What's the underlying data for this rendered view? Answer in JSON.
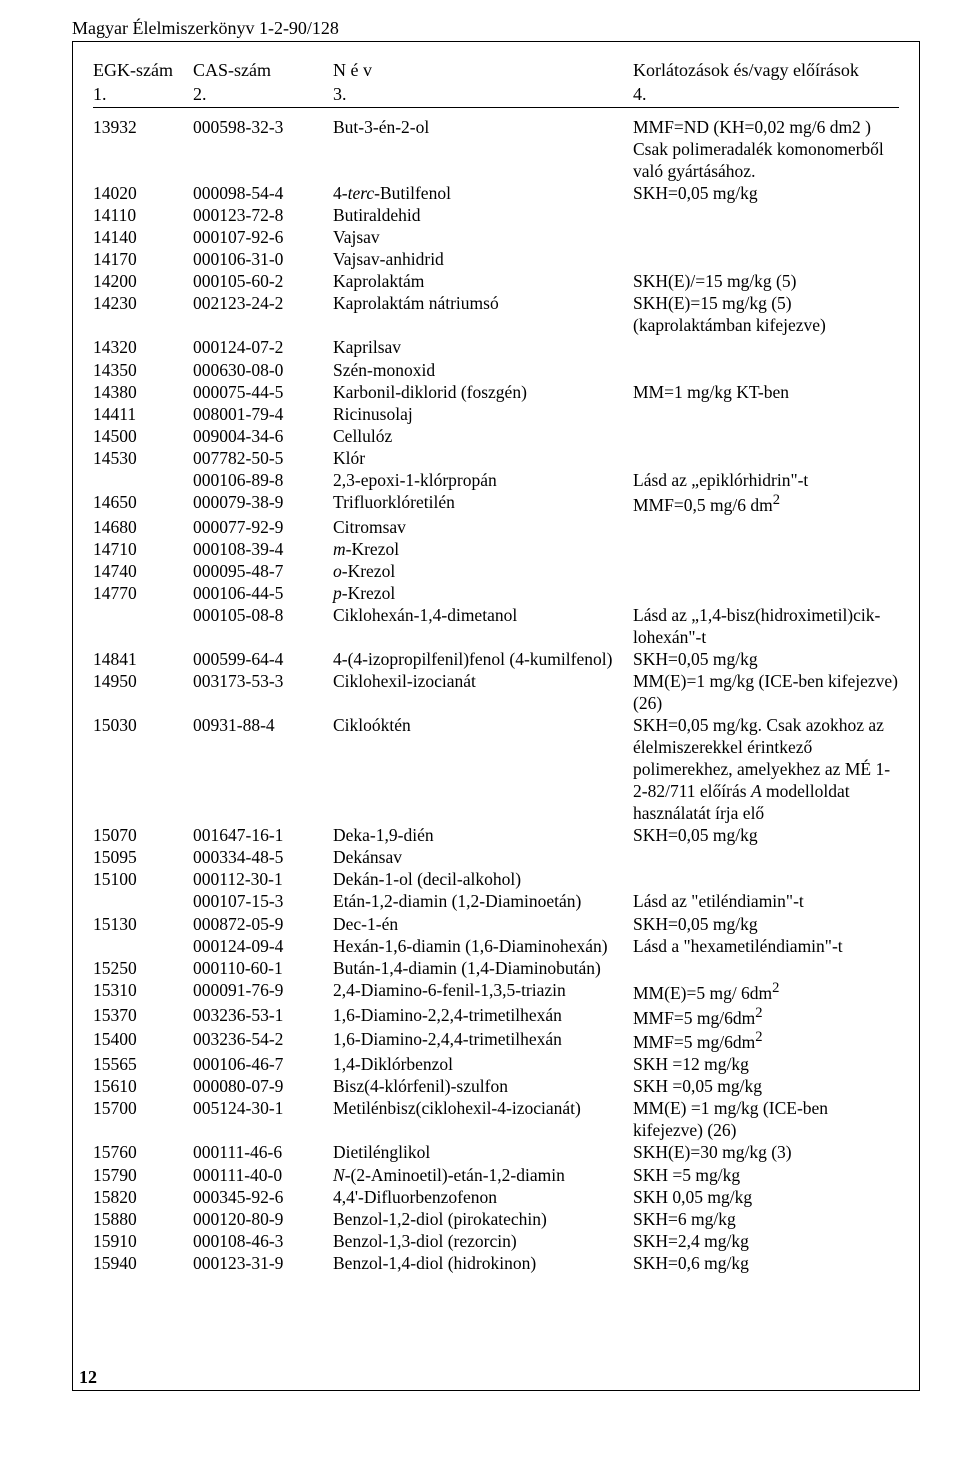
{
  "runhead": "Magyar Élelmiszerkönyv 1-2-90/128",
  "header": {
    "c1": "EGK-szám",
    "c2": "CAS-szám",
    "c3": "N é v",
    "c4": "Korlátozások és/vagy előírások"
  },
  "subheader": {
    "c1": "1.",
    "c2": "2.",
    "c3": "3.",
    "c4": "4."
  },
  "rows": [
    {
      "c1": "13932",
      "c2": "000598-32-3",
      "c3": "But-3-én-2-ol",
      "c4": "MMF=ND (KH=0,02 mg/6 dm2 )"
    },
    {
      "c1": "",
      "c2": "",
      "c3": "",
      "c4": "Csak polimeradalék komonomerből való gyártásához."
    },
    {
      "c1": "14020",
      "c2": "000098-54-4",
      "c3h": "4-<span class=\"i\">terc</span>-Butilfenol",
      "c4": "SKH=0,05 mg/kg"
    },
    {
      "c1": "14110",
      "c2": "000123-72-8",
      "c3": "Butiraldehid",
      "c4": ""
    },
    {
      "c1": "14140",
      "c2": "000107-92-6",
      "c3": "Vajsav",
      "c4": ""
    },
    {
      "c1": "14170",
      "c2": "000106-31-0",
      "c3": "Vajsav-anhidrid",
      "c4": ""
    },
    {
      "c1": "14200",
      "c2": "000105-60-2",
      "c3": "Kaprolaktám",
      "c4": "SKH(E)/=15 mg/kg (5)"
    },
    {
      "c1": "14230",
      "c2": "002123-24-2",
      "c3": "Kaprolaktám nátriumsó",
      "c4": "SKH(E)=15 mg/kg (5) (kaprolaktámban kifejezve)"
    },
    {
      "c1": "14320",
      "c2": "000124-07-2",
      "c3": "Kaprilsav",
      "c4": ""
    },
    {
      "c1": "14350",
      "c2": "000630-08-0",
      "c3": "Szén-monoxid",
      "c4": ""
    },
    {
      "c1": "14380",
      "c2": "000075-44-5",
      "c3": "Karbonil-diklorid (foszgén)",
      "c4": "MM=1 mg/kg KT-ben"
    },
    {
      "c1": "14411",
      "c2": "008001-79-4",
      "c3": "Ricinusolaj",
      "c4": ""
    },
    {
      "c1": "14500",
      "c2": "009004-34-6",
      "c3": "Cellulóz",
      "c4": ""
    },
    {
      "c1": "14530",
      "c2": "007782-50-5",
      "c3": "Klór",
      "c4": ""
    },
    {
      "c1": "",
      "c2": "000106-89-8",
      "c3": "2,3-epoxi-1-klórpropán",
      "c4": "Lásd az „epiklórhidrin\"-t"
    },
    {
      "c1": "14650",
      "c2": "000079-38-9",
      "c3": "Trifluorklóretilén",
      "c4h": "MMF=0,5 mg/6 dm<sup>2</sup>"
    },
    {
      "c1": "14680",
      "c2": "000077-92-9",
      "c3": "Citromsav",
      "c4": ""
    },
    {
      "c1": "14710",
      "c2": "000108-39-4",
      "c3h": "<span class=\"i\">m</span>-Krezol",
      "c4": ""
    },
    {
      "c1": "14740",
      "c2": "000095-48-7",
      "c3h": "<span class=\"i\">o</span>-Krezol",
      "c4": ""
    },
    {
      "c1": "14770",
      "c2": "000106-44-5",
      "c3h": "<span class=\"i\">p</span>-Krezol",
      "c4": ""
    },
    {
      "c1": "",
      "c2": "000105-08-8",
      "c3": "Ciklohexán-1,4-dimetanol",
      "c4": "Lásd az „1,4-bisz(hidroximetil)cik-lohexán\"-t"
    },
    {
      "c1": "14841",
      "c2": "000599-64-4",
      "c3": "4-(4-izopropilfenil)fenol (4-kumilfenol)",
      "c4": "SKH=0,05 mg/kg"
    },
    {
      "c1": "14950",
      "c2": "003173-53-3",
      "c3": "Ciklohexil-izocianát",
      "c4": "MM(E)=1 mg/kg  (ICE-ben kifejezve) (26)"
    },
    {
      "c1": "15030",
      "c2": "00931-88-4",
      "c3": "Cikloóktén",
      "c4h": "SKH=0,05 mg/kg. Csak azokhoz az élelmiszerekkel érintkező polimerekhez, amelyekhez az MÉ 1-2-82/711 előírás <span class=\"i\">A</span> modelloldat használatát írja elő"
    },
    {
      "c1": "15070",
      "c2": "001647-16-1",
      "c3": "Deka-1,9-dién",
      "c4": "SKH=0,05 mg/kg"
    },
    {
      "c1": "15095",
      "c2": "000334-48-5",
      "c3": "Dekánsav",
      "c4": ""
    },
    {
      "c1": "15100",
      "c2": "000112-30-1",
      "c3": "Dekán-1-ol (decil-alkohol)",
      "c4": ""
    },
    {
      "c1": "",
      "c2": "000107-15-3",
      "c3": "Etán-1,2-diamin (1,2-Diaminoetán)",
      "c4": "Lásd az \"etiléndiamin\"-t"
    },
    {
      "c1": "15130",
      "c2": "000872-05-9",
      "c3": "Dec-1-én",
      "c4": "SKH=0,05 mg/kg"
    },
    {
      "c1": "",
      "c2": "000124-09-4",
      "c3": "Hexán-1,6-diamin (1,6-Diaminohexán)",
      "c4": "Lásd a \"hexametiléndiamin\"-t"
    },
    {
      "c1": "15250",
      "c2": "000110-60-1",
      "c3": "Bután-1,4-diamin (1,4-Diaminobután)",
      "c4": ""
    },
    {
      "c1": "15310",
      "c2": "000091-76-9",
      "c3": "2,4-Diamino-6-fenil-1,3,5-triazin",
      "c4h": "MM(E)=5 mg/ 6dm<sup>2</sup>"
    },
    {
      "c1": "15370",
      "c2": "003236-53-1",
      "c3": "1,6-Diamino-2,2,4-trimetilhexán",
      "c4h": "MMF=5 mg/6dm<sup>2</sup>"
    },
    {
      "c1": "15400",
      "c2": "003236-54-2",
      "c3": "1,6-Diamino-2,4,4-trimetilhexán",
      "c4h": "MMF=5 mg/6dm<sup>2</sup>"
    },
    {
      "c1": "15565",
      "c2": "000106-46-7",
      "c3": "1,4-Diklórbenzol",
      "c4": "SKH =12 mg/kg"
    },
    {
      "c1": "15610",
      "c2": "000080-07-9",
      "c3": "Bisz(4-klórfenil)-szulfon",
      "c4": "SKH =0,05 mg/kg"
    },
    {
      "c1": "15700",
      "c2": "005124-30-1",
      "c3": "Metilénbisz(ciklohexil-4-izocianát)",
      "c4": "MM(E) =1 mg/kg  (ICE-ben kifejezve) (26)"
    },
    {
      "c1": "15760",
      "c2": "000111-46-6",
      "c3": "Dietilénglikol",
      "c4": "SKH(E)=30 mg/kg (3)"
    },
    {
      "c1": "15790",
      "c2": "000111-40-0",
      "c3h": "<span class=\"i\">N</span>-(2-Aminoetil)-etán-1,2-diamin",
      "c4": "SKH =5 mg/kg"
    },
    {
      "c1": "15820",
      "c2": "000345-92-6",
      "c3": "4,4'-Difluorbenzofenon",
      "c4": "SKH 0,05 mg/kg"
    },
    {
      "c1": "15880",
      "c2": "000120-80-9",
      "c3": "Benzol-1,2-diol (pirokatechin)",
      "c4": "SKH=6 mg/kg"
    },
    {
      "c1": "15910",
      "c2": "000108-46-3",
      "c3": "Benzol-1,3-diol (rezorcin)",
      "c4": "SKH=2,4 mg/kg"
    },
    {
      "c1": "15940",
      "c2": "000123-31-9",
      "c3": "Benzol-1,4-diol (hidrokinon)",
      "c4": "SKH=0,6 mg/kg"
    }
  ],
  "pagenum": "12"
}
